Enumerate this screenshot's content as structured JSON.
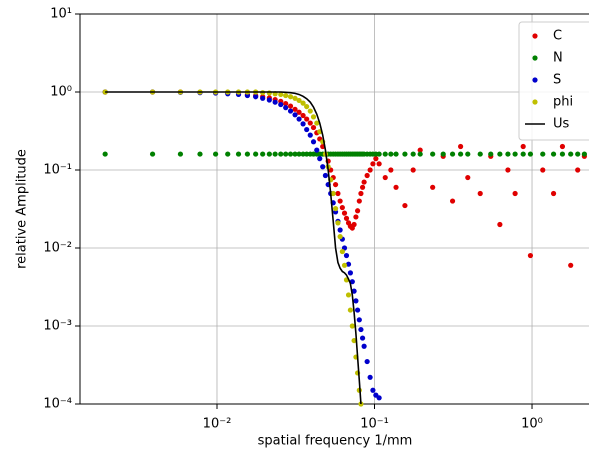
{
  "chart_data": {
    "type": "scatter",
    "x_label": "spatial frequency 1/mm",
    "y_label": "relative Amplitude",
    "xscale": "log",
    "yscale": "log",
    "grid": true,
    "legend": "upper right",
    "xlim": [
      0.00135,
      2.3
    ],
    "ylim": [
      0.0001,
      10
    ],
    "xticks": [
      {
        "value": 0.01,
        "label": "10⁻²"
      },
      {
        "value": 0.1,
        "label": "10⁻¹"
      },
      {
        "value": 1,
        "label": "10⁰"
      }
    ],
    "yticks": [
      {
        "value": 0.0001,
        "label": "10⁻⁴"
      },
      {
        "value": 0.001,
        "label": "10⁻³"
      },
      {
        "value": 0.01,
        "label": "10⁻²"
      },
      {
        "value": 0.1,
        "label": "10⁻¹"
      },
      {
        "value": 1,
        "label": "10⁰"
      },
      {
        "value": 10,
        "label": "10¹"
      }
    ],
    "x": [
      0.00195,
      0.0039,
      0.00586,
      0.0078,
      0.0098,
      0.0117,
      0.0137,
      0.0156,
      0.0176,
      0.0195,
      0.0215,
      0.0234,
      0.0254,
      0.0273,
      0.0293,
      0.0313,
      0.0332,
      0.0352,
      0.0371,
      0.0391,
      0.041,
      0.043,
      0.0449,
      0.0469,
      0.0488,
      0.0508,
      0.0527,
      0.0547,
      0.0566,
      0.0586,
      0.0605,
      0.0625,
      0.0645,
      0.0664,
      0.0684,
      0.0703,
      0.0723,
      0.0742,
      0.0762,
      0.0781,
      0.0801,
      0.082,
      0.084,
      0.0859,
      0.0898,
      0.0938,
      0.0977,
      0.102,
      0.107,
      0.117,
      0.127,
      0.137,
      0.156,
      0.176,
      0.195,
      0.234,
      0.273,
      0.313,
      0.352,
      0.391,
      0.469,
      0.547,
      0.625,
      0.703,
      0.781,
      0.879,
      0.977,
      1.17,
      1.37,
      1.56,
      1.76,
      1.95,
      2.15
    ],
    "series": [
      {
        "name": "C",
        "kind": "scatter",
        "color": "#e00000",
        "values": [
          1.0,
          1.0,
          1.0,
          0.99,
          0.98,
          0.97,
          0.95,
          0.93,
          0.9,
          0.87,
          0.84,
          0.8,
          0.76,
          0.71,
          0.66,
          0.6,
          0.55,
          0.5,
          0.45,
          0.4,
          0.35,
          0.3,
          0.25,
          0.2,
          0.16,
          0.13,
          0.1,
          0.08,
          0.065,
          0.05,
          0.04,
          0.033,
          0.028,
          0.024,
          0.021,
          0.019,
          0.018,
          0.02,
          0.025,
          0.03,
          0.04,
          0.05,
          0.06,
          0.07,
          0.085,
          0.1,
          0.12,
          0.14,
          0.12,
          0.08,
          0.1,
          0.06,
          0.035,
          0.1,
          0.18,
          0.06,
          0.15,
          0.04,
          0.2,
          0.08,
          0.05,
          0.15,
          0.02,
          0.1,
          0.05,
          0.2,
          0.008,
          0.1,
          0.05,
          0.2,
          0.006,
          0.1,
          0.15
        ]
      },
      {
        "name": "N",
        "kind": "scatter",
        "color": "#008000",
        "values": [
          0.16,
          0.16,
          0.16,
          0.16,
          0.16,
          0.16,
          0.16,
          0.16,
          0.16,
          0.16,
          0.16,
          0.16,
          0.16,
          0.16,
          0.16,
          0.16,
          0.16,
          0.16,
          0.16,
          0.16,
          0.16,
          0.16,
          0.16,
          0.16,
          0.16,
          0.16,
          0.16,
          0.16,
          0.16,
          0.16,
          0.16,
          0.16,
          0.16,
          0.16,
          0.16,
          0.16,
          0.16,
          0.16,
          0.16,
          0.16,
          0.16,
          0.16,
          0.16,
          0.16,
          0.16,
          0.16,
          0.16,
          0.16,
          0.16,
          0.16,
          0.16,
          0.16,
          0.16,
          0.16,
          0.16,
          0.16,
          0.16,
          0.16,
          0.16,
          0.16,
          0.16,
          0.16,
          0.16,
          0.16,
          0.16,
          0.16,
          0.16,
          0.16,
          0.16,
          0.16,
          0.16,
          0.16,
          0.16
        ]
      },
      {
        "name": "S",
        "kind": "scatter",
        "color": "#0000cc",
        "values": [
          1.0,
          1.0,
          0.99,
          0.98,
          0.97,
          0.95,
          0.93,
          0.9,
          0.87,
          0.83,
          0.79,
          0.74,
          0.69,
          0.63,
          0.57,
          0.51,
          0.45,
          0.39,
          0.33,
          0.28,
          0.23,
          0.18,
          0.14,
          0.11,
          0.085,
          0.065,
          0.05,
          0.038,
          0.029,
          0.022,
          0.017,
          0.013,
          0.01,
          0.008,
          0.0062,
          0.0048,
          0.0037,
          0.0028,
          0.0021,
          0.0016,
          0.0012,
          0.0009,
          0.0007,
          0.00055,
          0.00035,
          0.00022,
          0.00015,
          0.00013,
          0.00012,
          null,
          null,
          null,
          null,
          null,
          null,
          null,
          null,
          null,
          null,
          null,
          null,
          null,
          null,
          null,
          null,
          null,
          null,
          null,
          null,
          null,
          null,
          null,
          null
        ]
      },
      {
        "name": "phi",
        "kind": "scatter",
        "color": "#bfbf00",
        "values": [
          1.0,
          1.0,
          1.0,
          1.0,
          1.0,
          1.0,
          1.0,
          1.0,
          1.0,
          0.98,
          0.97,
          0.95,
          0.93,
          0.9,
          0.87,
          0.83,
          0.78,
          0.72,
          0.65,
          0.57,
          0.48,
          0.4,
          0.31,
          0.23,
          0.16,
          0.11,
          0.075,
          0.05,
          0.032,
          0.021,
          0.014,
          0.009,
          0.006,
          0.0039,
          0.0025,
          0.0016,
          0.001,
          0.00065,
          0.0004,
          0.00025,
          0.00015,
          0.0001,
          null,
          null,
          null,
          null,
          null,
          null,
          null,
          null,
          null,
          null,
          null,
          null,
          null,
          null,
          null,
          null,
          null,
          null,
          null,
          null,
          null,
          null,
          null,
          null,
          null,
          null,
          null,
          null,
          null,
          null,
          null
        ]
      },
      {
        "name": "Us",
        "kind": "line",
        "color": "#000000",
        "values": [
          1.0,
          1.0,
          1.0,
          1.0,
          1.0,
          1.0,
          1.0,
          1.0,
          1.0,
          1.0,
          1.0,
          1.0,
          1.0,
          0.99,
          0.98,
          0.96,
          0.93,
          0.88,
          0.82,
          0.74,
          0.64,
          0.52,
          0.4,
          0.28,
          0.18,
          0.1,
          0.05,
          0.022,
          0.01,
          0.0065,
          0.0055,
          0.005,
          0.0048,
          0.0045,
          0.004,
          0.0035,
          0.0025,
          0.0015,
          0.0008,
          0.0004,
          0.0002,
          0.0001,
          null,
          null,
          null,
          null,
          null,
          null,
          null,
          null,
          null,
          null,
          null,
          null,
          null,
          null,
          null,
          null,
          null,
          null,
          null,
          null,
          null,
          null,
          null,
          null,
          null,
          null,
          null,
          null,
          null,
          null,
          null
        ]
      }
    ]
  }
}
